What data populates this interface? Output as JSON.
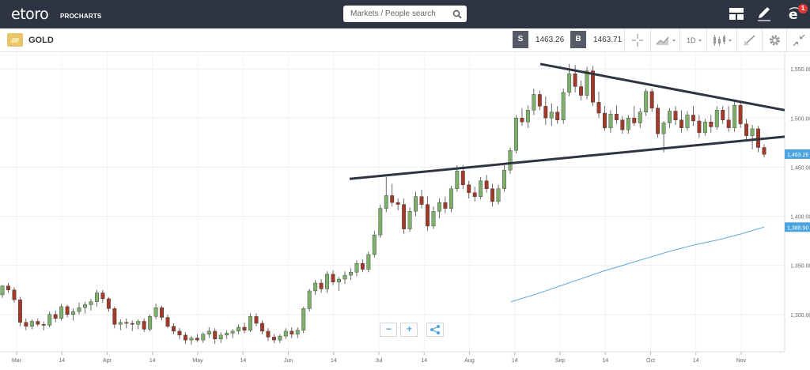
{
  "header": {
    "logo_text": "etoro",
    "logo_sub": "PROCHARTS",
    "search_placeholder": "Markets / People search",
    "notifications_count": "1"
  },
  "instrument": {
    "name": "GOLD",
    "sell_label": "S",
    "sell_price": "1463.26",
    "buy_label": "B",
    "buy_price": "1463.71",
    "timeframe": "1D"
  },
  "chart_data": {
    "type": "candlestick",
    "title": "",
    "y_ticks": [
      "1,550.00",
      "1,500.00",
      "1,450.00",
      "1,400.00",
      "1,350.00",
      "1,300.00"
    ],
    "ylim": [
      1262,
      1567
    ],
    "x_ticks": [
      "Mar",
      "14",
      "Apr",
      "14",
      "May",
      "14",
      "Jun",
      "14",
      "Jul",
      "14",
      "Aug",
      "14",
      "Sep",
      "14",
      "Oct",
      "14",
      "Nov"
    ],
    "price_tag": "1,463.26",
    "ma_tag": "1,388.90",
    "colors": {
      "up": "#7fb06b",
      "down": "#a23a2a",
      "ma": "#5ba7d8",
      "trend": "#2f3443"
    },
    "trendlines": [
      {
        "from": [
          1555,
          "late Aug"
        ],
        "to": [
          1508,
          "Nov end"
        ]
      },
      {
        "from": [
          1438,
          "early Jul"
        ],
        "to": [
          1481,
          "Nov end"
        ]
      }
    ],
    "moving_average": [
      1313,
      1320,
      1328,
      1336,
      1344,
      1351,
      1358,
      1365,
      1371,
      1376,
      1382,
      1389
    ],
    "candles": [
      [
        1320,
        1330,
        1317,
        1329
      ],
      [
        1329,
        1332,
        1322,
        1325
      ],
      [
        1325,
        1328,
        1312,
        1315
      ],
      [
        1315,
        1318,
        1288,
        1292
      ],
      [
        1292,
        1296,
        1284,
        1288
      ],
      [
        1288,
        1295,
        1285,
        1293
      ],
      [
        1293,
        1296,
        1288,
        1290
      ],
      [
        1290,
        1293,
        1284,
        1289
      ],
      [
        1289,
        1303,
        1287,
        1300
      ],
      [
        1300,
        1304,
        1292,
        1296
      ],
      [
        1296,
        1311,
        1294,
        1308
      ],
      [
        1308,
        1310,
        1297,
        1300
      ],
      [
        1300,
        1306,
        1294,
        1303
      ],
      [
        1303,
        1312,
        1300,
        1307
      ],
      [
        1307,
        1313,
        1301,
        1310
      ],
      [
        1310,
        1316,
        1304,
        1313
      ],
      [
        1313,
        1325,
        1308,
        1322
      ],
      [
        1322,
        1325,
        1312,
        1316
      ],
      [
        1316,
        1318,
        1303,
        1306
      ],
      [
        1306,
        1308,
        1286,
        1290
      ],
      [
        1290,
        1295,
        1284,
        1292
      ],
      [
        1292,
        1296,
        1286,
        1291
      ],
      [
        1291,
        1294,
        1283,
        1290
      ],
      [
        1290,
        1295,
        1285,
        1293
      ],
      [
        1293,
        1296,
        1282,
        1285
      ],
      [
        1285,
        1300,
        1283,
        1298
      ],
      [
        1298,
        1311,
        1295,
        1307
      ],
      [
        1307,
        1309,
        1294,
        1297
      ],
      [
        1297,
        1300,
        1286,
        1288
      ],
      [
        1288,
        1291,
        1280,
        1283
      ],
      [
        1283,
        1286,
        1275,
        1279
      ],
      [
        1279,
        1282,
        1270,
        1274
      ],
      [
        1274,
        1278,
        1269,
        1276
      ],
      [
        1276,
        1280,
        1272,
        1274
      ],
      [
        1274,
        1282,
        1271,
        1280
      ],
      [
        1280,
        1287,
        1276,
        1283
      ],
      [
        1283,
        1286,
        1270,
        1275
      ],
      [
        1275,
        1282,
        1271,
        1279
      ],
      [
        1279,
        1284,
        1275,
        1281
      ],
      [
        1281,
        1285,
        1276,
        1283
      ],
      [
        1283,
        1290,
        1280,
        1287
      ],
      [
        1287,
        1292,
        1281,
        1284
      ],
      [
        1284,
        1301,
        1282,
        1298
      ],
      [
        1298,
        1301,
        1288,
        1291
      ],
      [
        1291,
        1294,
        1280,
        1283
      ],
      [
        1283,
        1286,
        1273,
        1277
      ],
      [
        1277,
        1280,
        1271,
        1274
      ],
      [
        1274,
        1280,
        1271,
        1278
      ],
      [
        1278,
        1286,
        1275,
        1283
      ],
      [
        1283,
        1287,
        1276,
        1280
      ],
      [
        1280,
        1287,
        1276,
        1284
      ],
      [
        1284,
        1308,
        1281,
        1306
      ],
      [
        1306,
        1326,
        1303,
        1324
      ],
      [
        1324,
        1335,
        1320,
        1332
      ],
      [
        1332,
        1336,
        1322,
        1326
      ],
      [
        1326,
        1344,
        1322,
        1341
      ],
      [
        1341,
        1345,
        1330,
        1333
      ],
      [
        1333,
        1338,
        1324,
        1336
      ],
      [
        1336,
        1344,
        1331,
        1340
      ],
      [
        1340,
        1347,
        1335,
        1343
      ],
      [
        1343,
        1355,
        1339,
        1352
      ],
      [
        1352,
        1356,
        1343,
        1346
      ],
      [
        1346,
        1364,
        1343,
        1361
      ],
      [
        1361,
        1385,
        1358,
        1381
      ],
      [
        1381,
        1412,
        1378,
        1408
      ],
      [
        1408,
        1440,
        1404,
        1421
      ],
      [
        1421,
        1433,
        1410,
        1414
      ],
      [
        1414,
        1418,
        1406,
        1412
      ],
      [
        1412,
        1418,
        1382,
        1387
      ],
      [
        1387,
        1409,
        1384,
        1405
      ],
      [
        1405,
        1425,
        1400,
        1420
      ],
      [
        1420,
        1427,
        1408,
        1412
      ],
      [
        1412,
        1420,
        1385,
        1390
      ],
      [
        1390,
        1410,
        1387,
        1405
      ],
      [
        1405,
        1418,
        1398,
        1414
      ],
      [
        1414,
        1420,
        1403,
        1408
      ],
      [
        1408,
        1431,
        1404,
        1428
      ],
      [
        1428,
        1452,
        1425,
        1446
      ],
      [
        1446,
        1452,
        1428,
        1432
      ],
      [
        1432,
        1436,
        1418,
        1424
      ],
      [
        1424,
        1430,
        1415,
        1420
      ],
      [
        1420,
        1440,
        1417,
        1436
      ],
      [
        1436,
        1442,
        1424,
        1428
      ],
      [
        1428,
        1433,
        1410,
        1415
      ],
      [
        1415,
        1432,
        1412,
        1428
      ],
      [
        1428,
        1452,
        1425,
        1447
      ],
      [
        1447,
        1470,
        1443,
        1467
      ],
      [
        1467,
        1503,
        1464,
        1500
      ],
      [
        1500,
        1510,
        1492,
        1496
      ],
      [
        1496,
        1513,
        1490,
        1508
      ],
      [
        1508,
        1530,
        1503,
        1524
      ],
      [
        1524,
        1528,
        1508,
        1512
      ],
      [
        1512,
        1522,
        1493,
        1500
      ],
      [
        1500,
        1515,
        1492,
        1506
      ],
      [
        1506,
        1512,
        1494,
        1498
      ],
      [
        1498,
        1530,
        1494,
        1526
      ],
      [
        1526,
        1555,
        1522,
        1545
      ],
      [
        1545,
        1554,
        1526,
        1532
      ],
      [
        1532,
        1538,
        1518,
        1523
      ],
      [
        1523,
        1552,
        1519,
        1548
      ],
      [
        1548,
        1553,
        1512,
        1516
      ],
      [
        1516,
        1527,
        1500,
        1505
      ],
      [
        1505,
        1512,
        1487,
        1490
      ],
      [
        1490,
        1508,
        1485,
        1504
      ],
      [
        1504,
        1513,
        1494,
        1498
      ],
      [
        1498,
        1502,
        1484,
        1488
      ],
      [
        1488,
        1503,
        1484,
        1500
      ],
      [
        1500,
        1512,
        1492,
        1495
      ],
      [
        1495,
        1510,
        1490,
        1506
      ],
      [
        1506,
        1530,
        1502,
        1527
      ],
      [
        1527,
        1530,
        1506,
        1510
      ],
      [
        1510,
        1514,
        1480,
        1484
      ],
      [
        1484,
        1497,
        1465,
        1495
      ],
      [
        1495,
        1510,
        1490,
        1507
      ],
      [
        1507,
        1512,
        1493,
        1498
      ],
      [
        1498,
        1508,
        1485,
        1490
      ],
      [
        1490,
        1507,
        1487,
        1503
      ],
      [
        1503,
        1512,
        1492,
        1497
      ],
      [
        1497,
        1503,
        1480,
        1485
      ],
      [
        1485,
        1499,
        1482,
        1496
      ],
      [
        1496,
        1503,
        1485,
        1491
      ],
      [
        1491,
        1512,
        1488,
        1508
      ],
      [
        1508,
        1512,
        1494,
        1498
      ],
      [
        1498,
        1512,
        1486,
        1490
      ],
      [
        1490,
        1518,
        1486,
        1513
      ],
      [
        1513,
        1516,
        1490,
        1494
      ],
      [
        1494,
        1499,
        1478,
        1482
      ],
      [
        1482,
        1493,
        1468,
        1489
      ],
      [
        1489,
        1492,
        1465,
        1470
      ],
      [
        1470,
        1473,
        1460,
        1463
      ]
    ]
  },
  "controls": {
    "zoom_out": "−",
    "zoom_in": "+"
  }
}
